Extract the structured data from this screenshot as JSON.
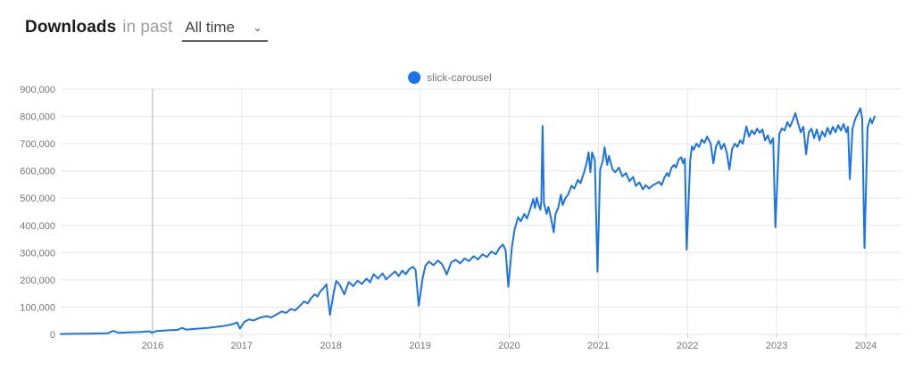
{
  "header": {
    "title": "Downloads",
    "subtitle": "in past",
    "period_selected": "All time"
  },
  "legend": {
    "label": "slick-carousel",
    "marker_color": "#1a73e8"
  },
  "chart_data": {
    "type": "line",
    "title": "",
    "xlabel": "",
    "ylabel": "",
    "xlim": [
      2014.97,
      2024.4
    ],
    "ylim": [
      0,
      900000
    ],
    "y_ticks": [
      0,
      100000,
      200000,
      300000,
      400000,
      500000,
      600000,
      700000,
      800000,
      900000
    ],
    "x_ticks": [
      2016,
      2017,
      2018,
      2019,
      2020,
      2021,
      2022,
      2023,
      2024
    ],
    "grid": true,
    "legend_position": "top-center",
    "grid_color": "#e6e6e6",
    "axis_text_color": "#757575",
    "tick_stub_color": "#cccccc",
    "highlight_x": 2016,
    "highlight_color": "#b0b0b0",
    "series": [
      {
        "name": "slick-carousel",
        "color": "#1a73e8",
        "points": [
          [
            2014.97,
            1200
          ],
          [
            2015.08,
            1800
          ],
          [
            2015.2,
            2400
          ],
          [
            2015.32,
            3000
          ],
          [
            2015.42,
            3600
          ],
          [
            2015.5,
            4200
          ],
          [
            2015.56,
            13000
          ],
          [
            2015.62,
            5500
          ],
          [
            2015.7,
            6800
          ],
          [
            2015.78,
            7800
          ],
          [
            2015.87,
            9200
          ],
          [
            2015.93,
            10500
          ],
          [
            2015.97,
            11000
          ],
          [
            2015.99,
            6500
          ],
          [
            2016.05,
            12500
          ],
          [
            2016.12,
            14000
          ],
          [
            2016.2,
            15500
          ],
          [
            2016.28,
            16500
          ],
          [
            2016.33,
            24000
          ],
          [
            2016.38,
            17500
          ],
          [
            2016.45,
            19500
          ],
          [
            2016.54,
            21500
          ],
          [
            2016.62,
            24000
          ],
          [
            2016.7,
            27000
          ],
          [
            2016.78,
            30000
          ],
          [
            2016.85,
            34000
          ],
          [
            2016.91,
            39000
          ],
          [
            2016.95,
            44000
          ],
          [
            2016.98,
            21000
          ],
          [
            2017.03,
            46000
          ],
          [
            2017.08,
            55000
          ],
          [
            2017.13,
            51000
          ],
          [
            2017.2,
            61000
          ],
          [
            2017.28,
            67000
          ],
          [
            2017.33,
            62000
          ],
          [
            2017.39,
            73000
          ],
          [
            2017.45,
            84000
          ],
          [
            2017.5,
            79000
          ],
          [
            2017.55,
            93000
          ],
          [
            2017.6,
            88000
          ],
          [
            2017.66,
            107000
          ],
          [
            2017.7,
            121000
          ],
          [
            2017.74,
            114000
          ],
          [
            2017.78,
            134000
          ],
          [
            2017.82,
            147000
          ],
          [
            2017.85,
            139000
          ],
          [
            2017.88,
            157000
          ],
          [
            2017.92,
            171000
          ],
          [
            2017.95,
            184000
          ],
          [
            2017.97,
            128000
          ],
          [
            2017.99,
            72000
          ],
          [
            2018.03,
            150000
          ],
          [
            2018.06,
            196000
          ],
          [
            2018.1,
            182000
          ],
          [
            2018.15,
            147000
          ],
          [
            2018.2,
            192000
          ],
          [
            2018.25,
            177000
          ],
          [
            2018.3,
            197000
          ],
          [
            2018.35,
            185000
          ],
          [
            2018.4,
            205000
          ],
          [
            2018.44,
            191000
          ],
          [
            2018.48,
            221000
          ],
          [
            2018.53,
            205000
          ],
          [
            2018.58,
            224000
          ],
          [
            2018.62,
            202000
          ],
          [
            2018.67,
            217000
          ],
          [
            2018.72,
            231000
          ],
          [
            2018.76,
            214000
          ],
          [
            2018.8,
            234000
          ],
          [
            2018.84,
            221000
          ],
          [
            2018.88,
            240000
          ],
          [
            2018.92,
            248000
          ],
          [
            2018.95,
            237000
          ],
          [
            2018.985,
            105000
          ],
          [
            2019.03,
            208000
          ],
          [
            2019.06,
            252000
          ],
          [
            2019.1,
            267000
          ],
          [
            2019.15,
            254000
          ],
          [
            2019.2,
            271000
          ],
          [
            2019.25,
            257000
          ],
          [
            2019.3,
            220000
          ],
          [
            2019.35,
            264000
          ],
          [
            2019.4,
            274000
          ],
          [
            2019.45,
            261000
          ],
          [
            2019.5,
            279000
          ],
          [
            2019.55,
            269000
          ],
          [
            2019.6,
            287000
          ],
          [
            2019.65,
            275000
          ],
          [
            2019.7,
            294000
          ],
          [
            2019.75,
            284000
          ],
          [
            2019.8,
            304000
          ],
          [
            2019.85,
            294000
          ],
          [
            2019.89,
            317000
          ],
          [
            2019.93,
            330000
          ],
          [
            2019.96,
            308000
          ],
          [
            2019.99,
            175000
          ],
          [
            2020.03,
            320000
          ],
          [
            2020.06,
            385000
          ],
          [
            2020.1,
            430000
          ],
          [
            2020.13,
            415000
          ],
          [
            2020.17,
            442000
          ],
          [
            2020.2,
            425000
          ],
          [
            2020.24,
            464000
          ],
          [
            2020.27,
            497000
          ],
          [
            2020.29,
            464000
          ],
          [
            2020.31,
            502000
          ],
          [
            2020.33,
            475000
          ],
          [
            2020.35,
            458000
          ],
          [
            2020.36,
            486000
          ],
          [
            2020.375,
            765000
          ],
          [
            2020.39,
            481000
          ],
          [
            2020.42,
            442000
          ],
          [
            2020.44,
            468000
          ],
          [
            2020.47,
            425000
          ],
          [
            2020.5,
            375000
          ],
          [
            2020.52,
            442000
          ],
          [
            2020.55,
            464000
          ],
          [
            2020.58,
            513000
          ],
          [
            2020.6,
            475000
          ],
          [
            2020.63,
            500000
          ],
          [
            2020.66,
            513000
          ],
          [
            2020.7,
            546000
          ],
          [
            2020.73,
            535000
          ],
          [
            2020.77,
            567000
          ],
          [
            2020.8,
            555000
          ],
          [
            2020.84,
            595000
          ],
          [
            2020.87,
            632000
          ],
          [
            2020.89,
            668000
          ],
          [
            2020.91,
            595000
          ],
          [
            2020.93,
            668000
          ],
          [
            2020.96,
            640000
          ],
          [
            2020.99,
            230000
          ],
          [
            2021.02,
            605000
          ],
          [
            2021.05,
            638000
          ],
          [
            2021.07,
            687000
          ],
          [
            2021.1,
            622000
          ],
          [
            2021.12,
            655000
          ],
          [
            2021.16,
            605000
          ],
          [
            2021.19,
            595000
          ],
          [
            2021.23,
            612000
          ],
          [
            2021.27,
            580000
          ],
          [
            2021.31,
            592000
          ],
          [
            2021.35,
            562000
          ],
          [
            2021.39,
            578000
          ],
          [
            2021.42,
            545000
          ],
          [
            2021.46,
            558000
          ],
          [
            2021.5,
            532000
          ],
          [
            2021.53,
            548000
          ],
          [
            2021.57,
            535000
          ],
          [
            2021.6,
            545000
          ],
          [
            2021.64,
            552000
          ],
          [
            2021.68,
            560000
          ],
          [
            2021.71,
            548000
          ],
          [
            2021.74,
            575000
          ],
          [
            2021.77,
            592000
          ],
          [
            2021.79,
            580000
          ],
          [
            2021.82,
            612000
          ],
          [
            2021.85,
            622000
          ],
          [
            2021.87,
            612000
          ],
          [
            2021.9,
            642000
          ],
          [
            2021.93,
            650000
          ],
          [
            2021.95,
            628000
          ],
          [
            2021.97,
            645000
          ],
          [
            2021.99,
            311000
          ],
          [
            2022.03,
            640000
          ],
          [
            2022.05,
            690000
          ],
          [
            2022.07,
            678000
          ],
          [
            2022.1,
            700000
          ],
          [
            2022.13,
            688000
          ],
          [
            2022.16,
            715000
          ],
          [
            2022.19,
            703000
          ],
          [
            2022.22,
            726000
          ],
          [
            2022.26,
            700000
          ],
          [
            2022.29,
            628000
          ],
          [
            2022.32,
            690000
          ],
          [
            2022.35,
            710000
          ],
          [
            2022.38,
            680000
          ],
          [
            2022.41,
            700000
          ],
          [
            2022.44,
            668000
          ],
          [
            2022.47,
            605000
          ],
          [
            2022.5,
            680000
          ],
          [
            2022.53,
            700000
          ],
          [
            2022.56,
            688000
          ],
          [
            2022.59,
            712000
          ],
          [
            2022.62,
            700000
          ],
          [
            2022.66,
            763000
          ],
          [
            2022.69,
            726000
          ],
          [
            2022.72,
            748000
          ],
          [
            2022.75,
            735000
          ],
          [
            2022.78,
            755000
          ],
          [
            2022.81,
            740000
          ],
          [
            2022.84,
            752000
          ],
          [
            2022.87,
            712000
          ],
          [
            2022.9,
            730000
          ],
          [
            2022.93,
            700000
          ],
          [
            2022.96,
            720000
          ],
          [
            2022.985,
            393000
          ],
          [
            2023.03,
            736000
          ],
          [
            2023.06,
            756000
          ],
          [
            2023.09,
            748000
          ],
          [
            2023.12,
            779000
          ],
          [
            2023.15,
            762000
          ],
          [
            2023.18,
            785000
          ],
          [
            2023.21,
            812000
          ],
          [
            2023.24,
            775000
          ],
          [
            2023.27,
            742000
          ],
          [
            2023.3,
            762000
          ],
          [
            2023.33,
            661000
          ],
          [
            2023.36,
            742000
          ],
          [
            2023.39,
            755000
          ],
          [
            2023.42,
            720000
          ],
          [
            2023.45,
            752000
          ],
          [
            2023.48,
            712000
          ],
          [
            2023.51,
            745000
          ],
          [
            2023.54,
            726000
          ],
          [
            2023.57,
            758000
          ],
          [
            2023.6,
            735000
          ],
          [
            2023.63,
            762000
          ],
          [
            2023.66,
            742000
          ],
          [
            2023.69,
            768000
          ],
          [
            2023.72,
            748000
          ],
          [
            2023.75,
            772000
          ],
          [
            2023.78,
            742000
          ],
          [
            2023.8,
            762000
          ],
          [
            2023.82,
            570000
          ],
          [
            2023.85,
            755000
          ],
          [
            2023.88,
            790000
          ],
          [
            2023.91,
            810000
          ],
          [
            2023.94,
            830000
          ],
          [
            2023.96,
            790000
          ],
          [
            2023.985,
            317000
          ],
          [
            2024.02,
            760000
          ],
          [
            2024.05,
            792000
          ],
          [
            2024.07,
            775000
          ],
          [
            2024.1,
            800000
          ]
        ]
      }
    ]
  }
}
